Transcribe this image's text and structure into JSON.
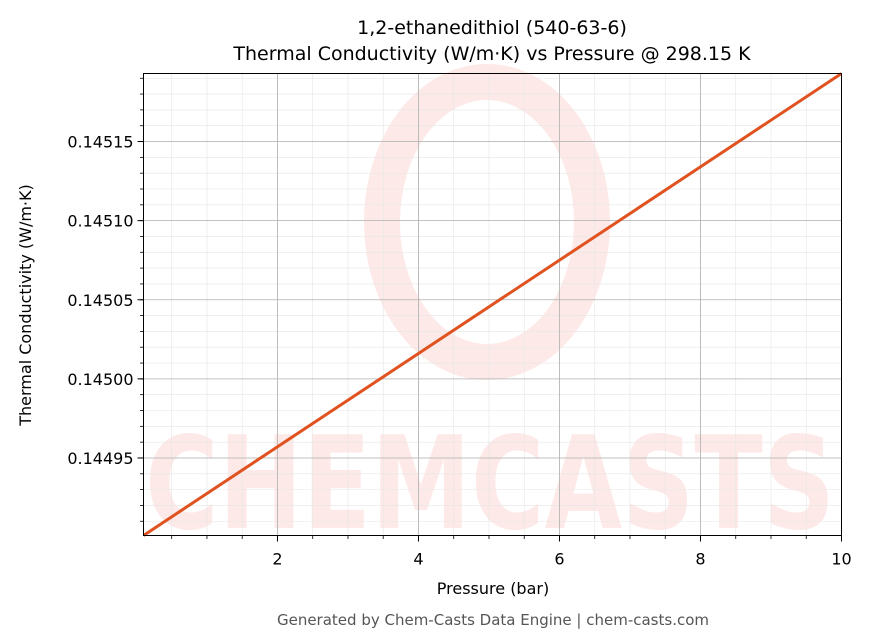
{
  "chart_data": {
    "type": "line",
    "title": "1,2-ethanedithiol (540-63-6)",
    "subtitle": "Thermal Conductivity (W/m·K) vs Pressure @ 298.15 K",
    "xlabel": "Pressure (bar)",
    "ylabel": "Thermal Conductivity (W/m·K)",
    "xlim": [
      0.1,
      10
    ],
    "ylim": [
      0.144901,
      0.145193
    ],
    "xticks": [
      2,
      4,
      6,
      8,
      10
    ],
    "xtick_labels": [
      "2",
      "4",
      "6",
      "8",
      "10"
    ],
    "yticks": [
      0.14495,
      0.145,
      0.14505,
      0.1451,
      0.14515
    ],
    "ytick_labels": [
      "0.14495",
      "0.14500",
      "0.14505",
      "0.14510",
      "0.14515"
    ],
    "grid": true,
    "series": [
      {
        "name": "Thermal Conductivity",
        "color": "#e0521f",
        "x": [
          0.1,
          10
        ],
        "y": [
          0.144901,
          0.145193
        ]
      }
    ],
    "watermark": "CHEMCASTS",
    "footer": "Generated by Chem-Casts Data Engine | chem-casts.com"
  }
}
